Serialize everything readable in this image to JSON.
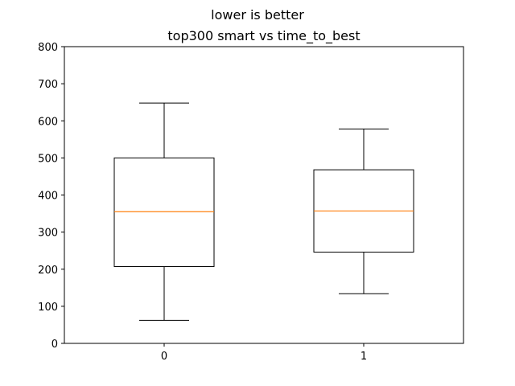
{
  "suptitle": "lower is better",
  "chart_data": {
    "type": "box",
    "title": "top300 smart vs time_to_best",
    "xlabel": "",
    "ylabel": "",
    "ylim": [
      0,
      800
    ],
    "yticks": [
      0,
      100,
      200,
      300,
      400,
      500,
      600,
      700,
      800
    ],
    "categories": [
      "0",
      "1"
    ],
    "boxes": [
      {
        "category": "0",
        "whisker_low": 62,
        "q1": 207,
        "median": 355,
        "q3": 500,
        "whisker_high": 648
      },
      {
        "category": "1",
        "whisker_low": 134,
        "q1": 246,
        "median": 357,
        "q3": 468,
        "whisker_high": 578
      }
    ],
    "grid": false,
    "colors": {
      "box": "#000000",
      "median": "#ff7f0e"
    }
  }
}
